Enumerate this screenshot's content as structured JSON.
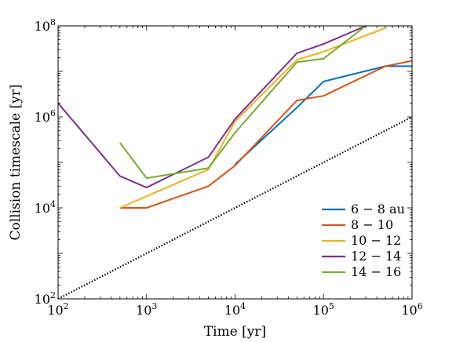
{
  "chart_data": {
    "type": "line",
    "xlabel": "Time [yr]",
    "ylabel": "Collision timescale [yr]",
    "xscale": "log",
    "yscale": "log",
    "xlim": [
      100,
      1000000
    ],
    "ylim": [
      100,
      100000000
    ],
    "x_ticks": [
      {
        "value": 100,
        "base": "10",
        "exp": "2"
      },
      {
        "value": 1000,
        "base": "10",
        "exp": "3"
      },
      {
        "value": 10000,
        "base": "10",
        "exp": "4"
      },
      {
        "value": 100000,
        "base": "10",
        "exp": "5"
      },
      {
        "value": 1000000,
        "base": "10",
        "exp": "6"
      }
    ],
    "y_ticks": [
      {
        "value": 100,
        "base": "10",
        "exp": "2"
      },
      {
        "value": 10000,
        "base": "10",
        "exp": "4"
      },
      {
        "value": 1000000,
        "base": "10",
        "exp": "6"
      },
      {
        "value": 100000000,
        "base": "10",
        "exp": "8"
      }
    ],
    "grid": false,
    "legend_position": "lower-right",
    "series": [
      {
        "name": "6 − 8 au",
        "color": "#0072BD",
        "x": [
          10000,
          50000,
          100000,
          500000,
          1000000
        ],
        "y": [
          90000,
          1600000,
          6000000,
          13000000,
          13000000
        ]
      },
      {
        "name": "8 − 10",
        "color": "#D95319",
        "x": [
          500,
          1000,
          5000,
          10000,
          50000,
          100000,
          500000,
          1000000
        ],
        "y": [
          10000,
          10000,
          30000,
          85000,
          2300000,
          2900000,
          13000000,
          17000000
        ]
      },
      {
        "name": "10 − 12",
        "color": "#EDB120",
        "x": [
          500,
          1000,
          5000,
          10000,
          50000,
          100000,
          500000
        ],
        "y": [
          10000,
          18000,
          70000,
          800000,
          18000000,
          27000000,
          90000000
        ]
      },
      {
        "name": "12 − 14",
        "color": "#7E2F8E",
        "x": [
          100,
          500,
          1000,
          5000,
          10000,
          50000,
          100000,
          300000
        ],
        "y": [
          2000000,
          50000,
          28000,
          130000,
          900000,
          25000000,
          40000000,
          100000000
        ]
      },
      {
        "name": "14 − 16",
        "color": "#77AC30",
        "x": [
          500,
          1000,
          5000,
          10000,
          50000,
          100000,
          300000
        ],
        "y": [
          270000,
          45000,
          75000,
          450000,
          16000000,
          19000000,
          100000000
        ]
      }
    ],
    "reference_line": {
      "style": "dotted",
      "color": "#000000",
      "x": [
        100,
        1000000
      ],
      "y": [
        100,
        1000000
      ]
    }
  }
}
